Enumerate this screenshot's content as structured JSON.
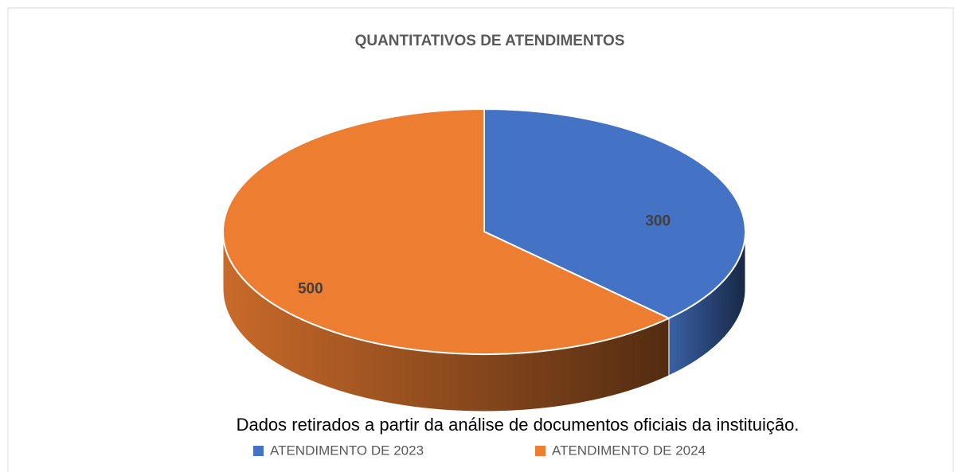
{
  "chart_data": {
    "type": "pie",
    "title": "QUANTITATIVOS DE ATENDIMENTOS",
    "categories": [
      "ATENDIMENTO DE 2023",
      "ATENDIMENTO DE 2024"
    ],
    "values": [
      300,
      500
    ],
    "colors": [
      "#4472c4",
      "#ed7d31"
    ],
    "annotation": "Dados retirados a partir da análise de documentos oficiais da instituição.",
    "legend": "bottom"
  }
}
